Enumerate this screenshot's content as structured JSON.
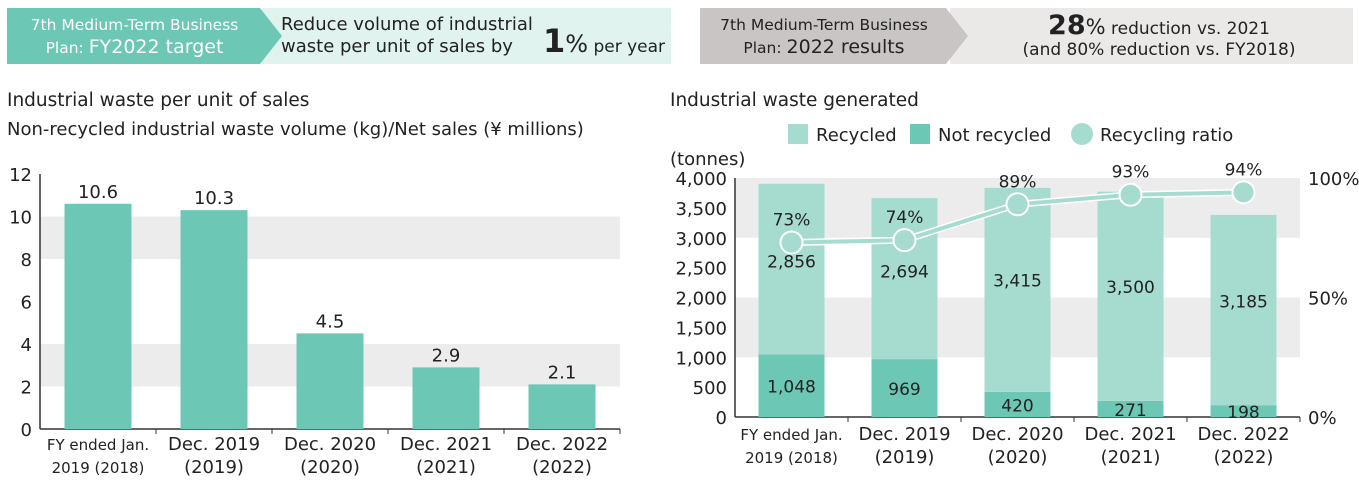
{
  "colors": {
    "teal": "#6cc7b4",
    "teal_dark": "#5bbea8",
    "teal_light": "#a6dccf",
    "banner_light": "#e1f3ef",
    "banner_gray_dark": "#c9c5c5",
    "banner_gray_light": "#ebe8e8",
    "band_gray": "#ececec",
    "text": "#222222"
  },
  "banner_left": {
    "tag_line1": "7th Medium-Term Business",
    "tag_line2_prefix": "Plan: ",
    "tag_line2_main": "FY2022 target",
    "text_line1": "Reduce volume of industrial",
    "text_line2": "waste per unit of sales by",
    "big_value": "1",
    "unit_pct": "%",
    "per_year": " per year"
  },
  "banner_right": {
    "tag_line1": "7th Medium-Term Business",
    "tag_line2_prefix": "Plan: ",
    "tag_line2_main": "2022 results",
    "big_value": "28",
    "unit_pct": "%",
    "line1_rest": " reduction vs. 2021",
    "line2": "(and 80% reduction vs. FY2018)"
  },
  "chart_data": [
    {
      "type": "bar",
      "title": "Industrial waste per unit of sales",
      "subtitle": "Non-recycled industrial waste volume (kg)/Net sales (¥ millions)",
      "categories": [
        [
          "FY ended Jan.",
          "2019 (2018)"
        ],
        [
          "Dec. 2019",
          "(2019)"
        ],
        [
          "Dec. 2020",
          "(2020)"
        ],
        [
          "Dec. 2021",
          "(2021)"
        ],
        [
          "Dec. 2022",
          "(2022)"
        ]
      ],
      "values": [
        10.6,
        10.3,
        4.5,
        2.9,
        2.1
      ],
      "value_labels": [
        "10.6",
        "10.3",
        "4.5",
        "2.9",
        "2.1"
      ],
      "ylim": [
        0,
        12
      ],
      "yticks": [
        "0",
        "2",
        "4",
        "6",
        "8",
        "10",
        "12"
      ],
      "shaded_bands": [
        [
          2,
          4
        ],
        [
          8,
          10
        ]
      ]
    },
    {
      "type": "bar",
      "stacked": true,
      "title": "Industrial waste generated",
      "ylabel": "(tonnes)",
      "legend": [
        "Recycled",
        "Not recycled",
        "Recycling ratio"
      ],
      "categories": [
        [
          "FY ended Jan.",
          "2019 (2018)"
        ],
        [
          "Dec. 2019",
          "(2019)"
        ],
        [
          "Dec. 2020",
          "(2020)"
        ],
        [
          "Dec. 2021",
          "(2021)"
        ],
        [
          "Dec. 2022",
          "(2022)"
        ]
      ],
      "series": [
        {
          "name": "Not recycled",
          "values": [
            1048,
            969,
            420,
            271,
            198
          ],
          "labels": [
            "1,048",
            "969",
            "420",
            "271",
            "198"
          ]
        },
        {
          "name": "Recycled",
          "values": [
            2856,
            2694,
            3415,
            3500,
            3185
          ],
          "labels": [
            "2,856",
            "2,694",
            "3,415",
            "3,500",
            "3,185"
          ]
        }
      ],
      "line_series": {
        "name": "Recycling ratio",
        "values": [
          73,
          74,
          89,
          93,
          94
        ],
        "labels": [
          "73%",
          "74%",
          "89%",
          "93%",
          "94%"
        ]
      },
      "ylim": [
        0,
        4000
      ],
      "yticks": [
        "0",
        "500",
        "1,000",
        "1,500",
        "2,000",
        "2,500",
        "3,000",
        "3,500",
        "4,000"
      ],
      "y2lim": [
        0,
        100
      ],
      "y2ticks": [
        "0%",
        "50%",
        "100%"
      ],
      "shaded_bands": [
        [
          1000,
          2000
        ],
        [
          3000,
          4000
        ]
      ]
    }
  ]
}
